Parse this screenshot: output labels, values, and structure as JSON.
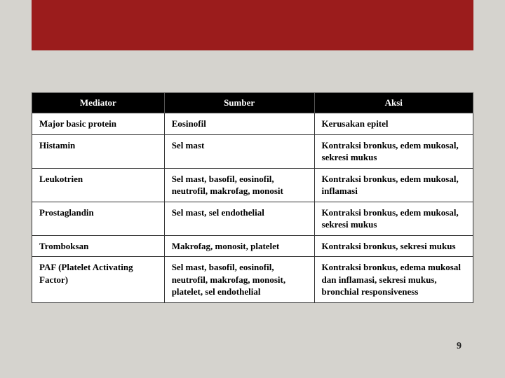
{
  "header": {
    "bar_color": "#9b1c1c"
  },
  "page_number": "9",
  "table": {
    "columns": [
      {
        "label": "Mediator",
        "align": "center"
      },
      {
        "label": "Sumber",
        "align": "center"
      },
      {
        "label": "Aksi",
        "align": "center"
      }
    ],
    "rows": [
      {
        "mediator": "Major basic protein",
        "sumber": "Eosinofil",
        "aksi": "Kerusakan epitel"
      },
      {
        "mediator": "Histamin",
        "sumber": "Sel mast",
        "aksi": "Kontraksi bronkus, edem mukosal, sekresi mukus"
      },
      {
        "mediator": "Leukotrien",
        "sumber": "Sel mast, basofil, eosinofil, neutrofil, makrofag, monosit",
        "aksi": "Kontraksi bronkus, edem mukosal, inflamasi"
      },
      {
        "mediator": "Prostaglandin",
        "sumber": "Sel mast, sel endothelial",
        "aksi": "Kontraksi bronkus, edem mukosal, sekresi mukus"
      },
      {
        "mediator": "Tromboksan",
        "sumber": "Makrofag, monosit, platelet",
        "aksi": "Kontraksi bronkus, sekresi mukus"
      },
      {
        "mediator": "PAF (Platelet Activating Factor)",
        "sumber": "Sel mast, basofil, eosinofil, neutrofil, makrofag, monosit, platelet, sel endothelial",
        "aksi": "Kontraksi bronkus, edema mukosal dan inflamasi, sekresi mukus, bronchial responsiveness"
      }
    ],
    "header_bg": "#000000",
    "header_fg": "#ffffff",
    "cell_bg": "#ffffff",
    "border_color": "#333333",
    "font_size_pt": 10
  },
  "background_color": "#d5d3ce"
}
